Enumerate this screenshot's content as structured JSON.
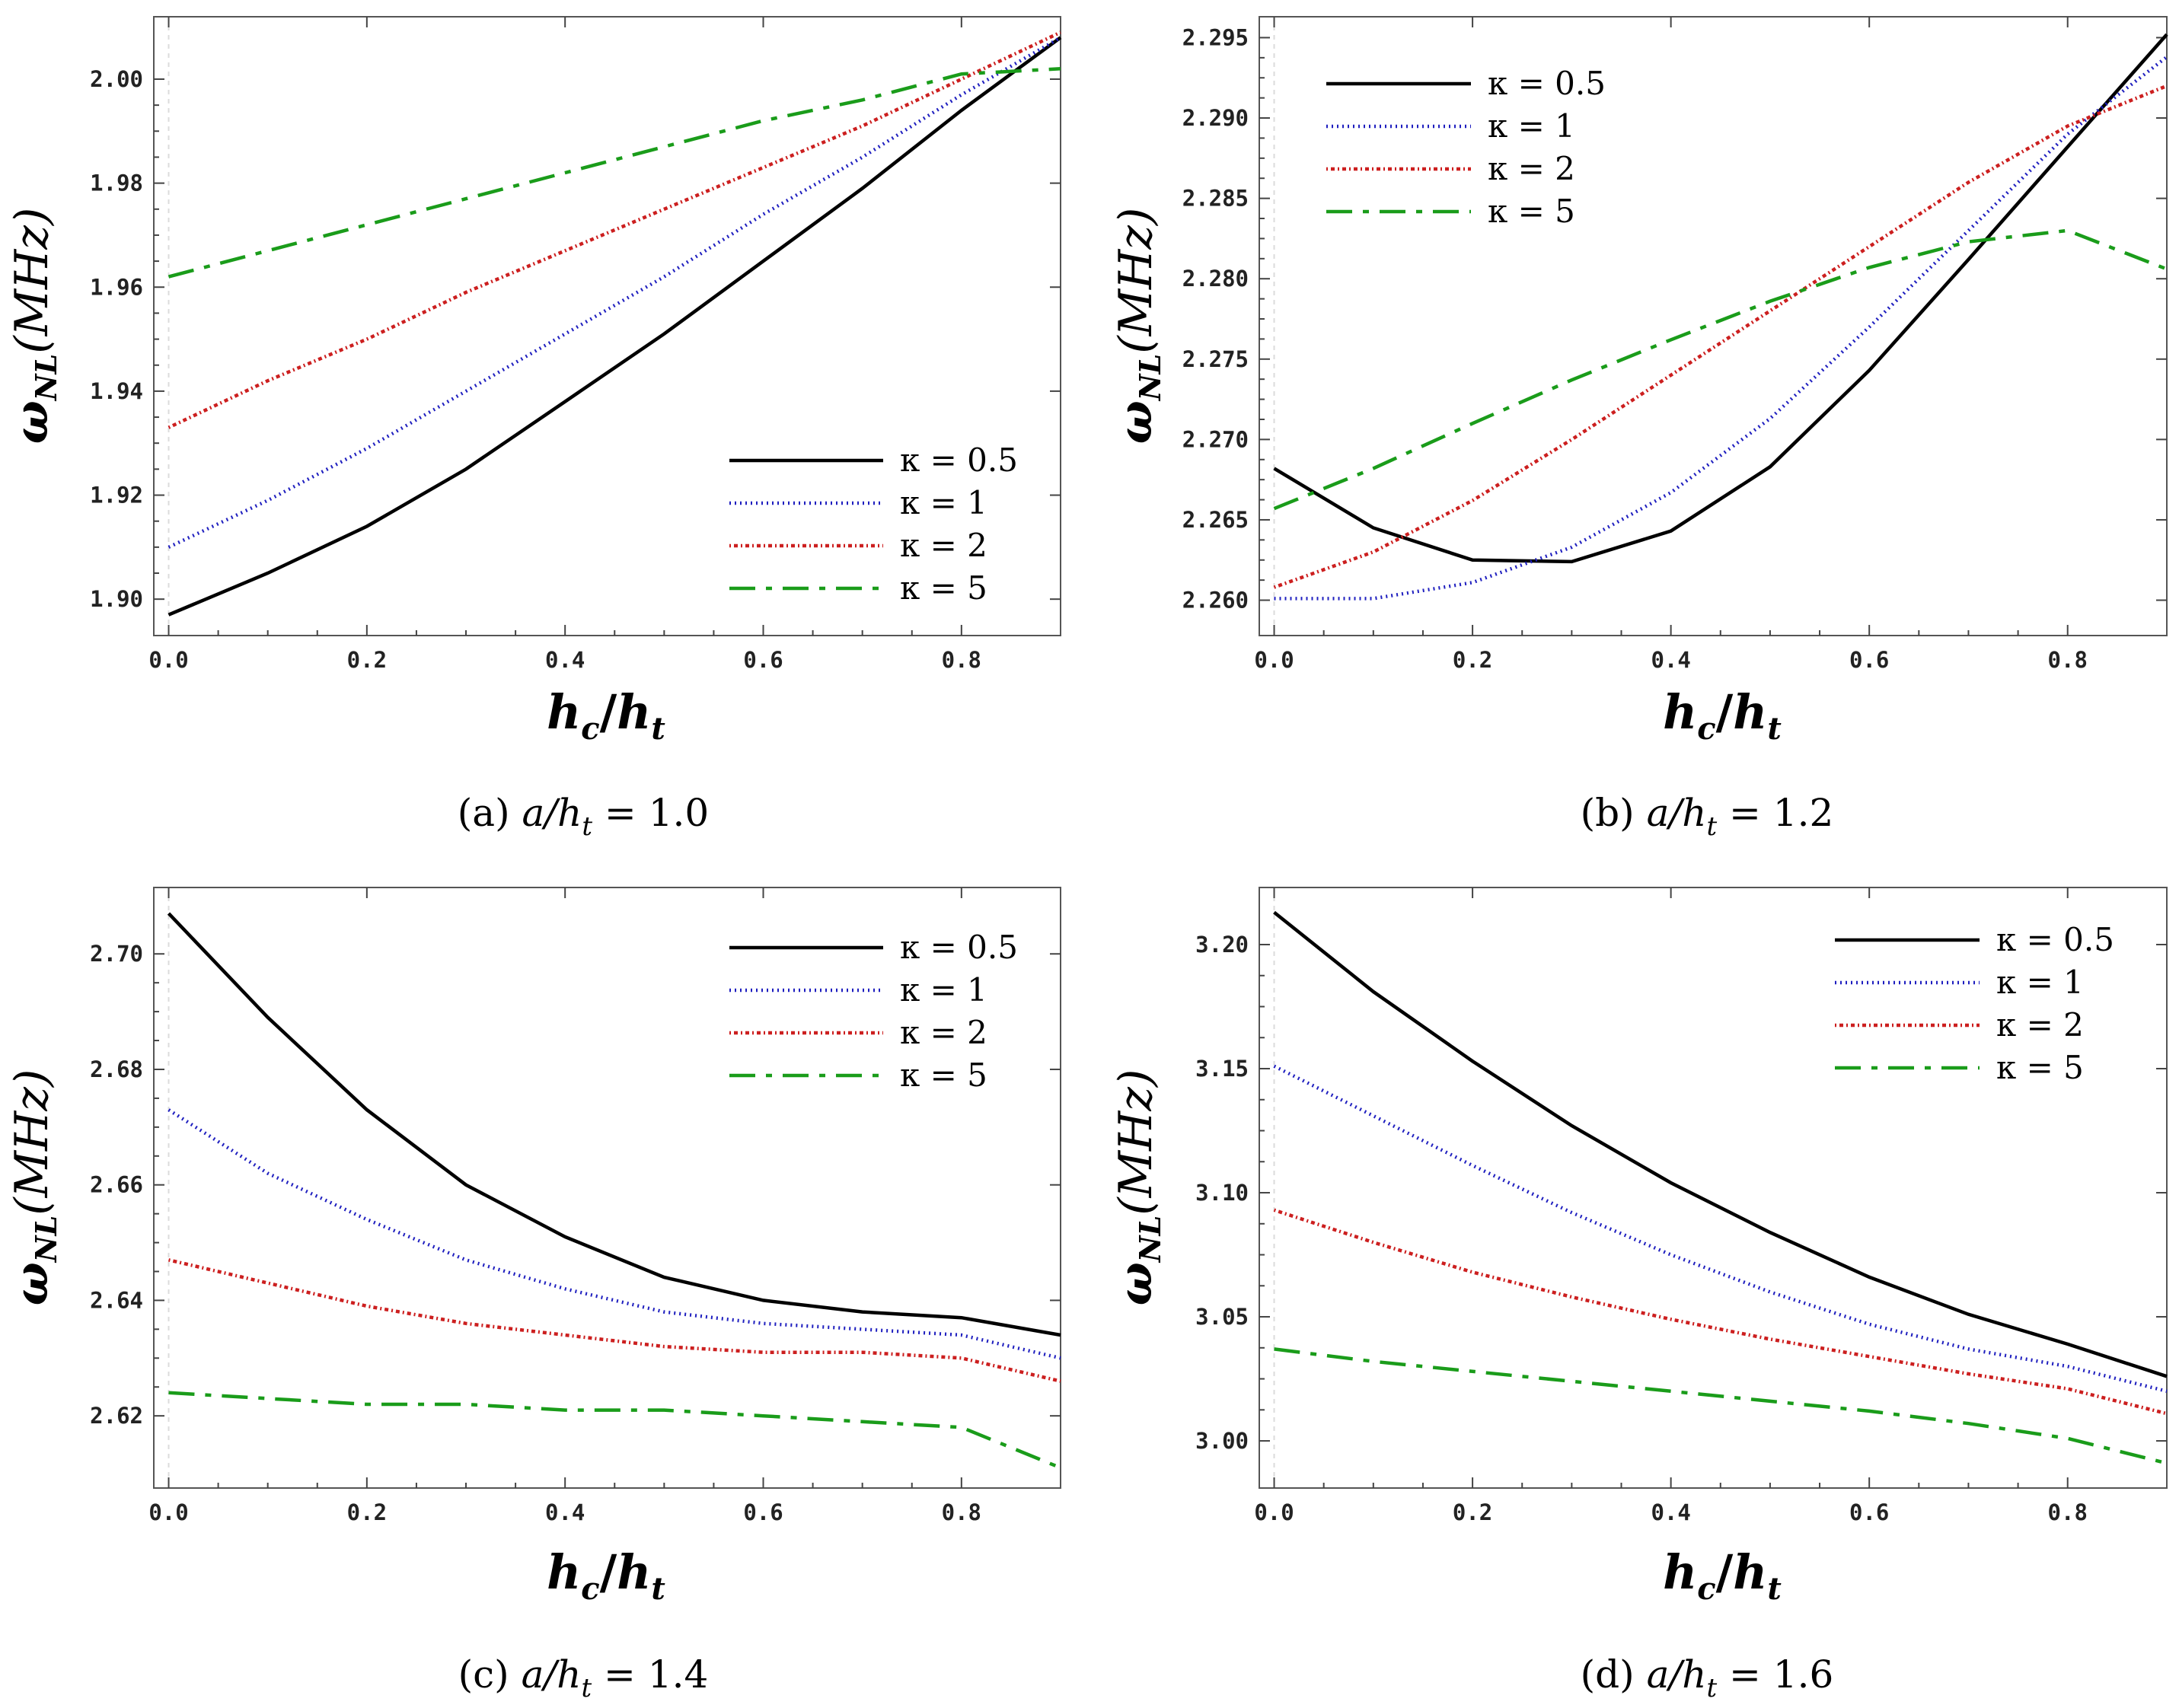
{
  "chart_data": [
    {
      "type": "line",
      "panel": "a",
      "caption_label": "(a)",
      "caption_eq": "a/h",
      "caption_sub": "t",
      "caption_value": "= 1.0",
      "xlabel": "h",
      "xlabel_sub1": "c",
      "xlabel_sub2": "t",
      "ylabel": "ω",
      "ylabel_sub": "NL",
      "ylabel_unit": "(MHz)",
      "xlim": [
        -0.015,
        0.9
      ],
      "ylim": [
        1.893,
        2.012
      ],
      "xticks": [
        "0.0",
        "0.2",
        "0.4",
        "0.6",
        "0.8"
      ],
      "yticks": [
        "1.90",
        "1.92",
        "1.94",
        "1.96",
        "1.98",
        "2.00"
      ],
      "legend_position": "bottom-right",
      "x": [
        0.0,
        0.1,
        0.2,
        0.3,
        0.4,
        0.5,
        0.6,
        0.7,
        0.8,
        0.9
      ],
      "series": [
        {
          "name": "κ = 0.5",
          "color": "#000000",
          "dash": "solid",
          "values": [
            1.897,
            1.905,
            1.914,
            1.925,
            1.938,
            1.951,
            1.965,
            1.979,
            1.994,
            2.008
          ]
        },
        {
          "name": "κ = 1",
          "color": "#1f1fbf",
          "dash": "dotted",
          "values": [
            1.91,
            1.919,
            1.929,
            1.94,
            1.951,
            1.962,
            1.974,
            1.985,
            1.997,
            2.008
          ]
        },
        {
          "name": "κ = 2",
          "color": "#cc1f1f",
          "dash": "dashdot",
          "values": [
            1.933,
            1.942,
            1.95,
            1.959,
            1.967,
            1.975,
            1.983,
            1.991,
            2.0,
            2.009
          ]
        },
        {
          "name": "κ = 5",
          "color": "#1a9c1a",
          "dash": "longdash",
          "values": [
            1.962,
            1.967,
            1.972,
            1.977,
            1.982,
            1.987,
            1.992,
            1.996,
            2.001,
            2.002
          ]
        }
      ]
    },
    {
      "type": "line",
      "panel": "b",
      "caption_label": "(b)",
      "caption_eq": "a/h",
      "caption_sub": "t",
      "caption_value": "= 1.2",
      "xlabel": "h",
      "xlabel_sub1": "c",
      "xlabel_sub2": "t",
      "ylabel": "ω",
      "ylabel_sub": "NL",
      "ylabel_unit": "(MHz)",
      "xlim": [
        -0.015,
        0.9
      ],
      "ylim": [
        2.2578,
        2.2963
      ],
      "xticks": [
        "0.0",
        "0.2",
        "0.4",
        "0.6",
        "0.8"
      ],
      "yticks": [
        "2.260",
        "2.265",
        "2.270",
        "2.275",
        "2.280",
        "2.285",
        "2.290",
        "2.295"
      ],
      "legend_position": "top-left",
      "x": [
        0.0,
        0.1,
        0.2,
        0.3,
        0.4,
        0.5,
        0.6,
        0.7,
        0.8,
        0.9
      ],
      "series": [
        {
          "name": "κ = 0.5",
          "color": "#000000",
          "dash": "solid",
          "values": [
            2.2682,
            2.2645,
            2.2625,
            2.2624,
            2.2643,
            2.2683,
            2.2743,
            2.2812,
            2.2882,
            2.2952
          ]
        },
        {
          "name": "κ = 1",
          "color": "#1f1fbf",
          "dash": "dotted",
          "values": [
            2.2601,
            2.2601,
            2.2611,
            2.2633,
            2.2667,
            2.2713,
            2.277,
            2.283,
            2.289,
            2.2938
          ]
        },
        {
          "name": "κ = 2",
          "color": "#cc1f1f",
          "dash": "dashdot",
          "values": [
            2.2608,
            2.263,
            2.2662,
            2.27,
            2.274,
            2.278,
            2.282,
            2.286,
            2.2895,
            2.292
          ]
        },
        {
          "name": "κ = 5",
          "color": "#1a9c1a",
          "dash": "longdash",
          "values": [
            2.2657,
            2.2682,
            2.271,
            2.2737,
            2.2762,
            2.2786,
            2.2807,
            2.2823,
            2.283,
            2.2806
          ]
        }
      ]
    },
    {
      "type": "line",
      "panel": "c",
      "caption_label": "(c)",
      "caption_eq": "a/h",
      "caption_sub": "t",
      "caption_value": "= 1.4",
      "xlabel": "h",
      "xlabel_sub1": "c",
      "xlabel_sub2": "t",
      "ylabel": "ω",
      "ylabel_sub": "NL",
      "ylabel_unit": "(MHz)",
      "xlim": [
        -0.015,
        0.9
      ],
      "ylim": [
        2.6075,
        2.7115
      ],
      "xticks": [
        "0.0",
        "0.2",
        "0.4",
        "0.6",
        "0.8"
      ],
      "yticks": [
        "2.62",
        "2.64",
        "2.66",
        "2.68",
        "2.70"
      ],
      "legend_position": "top-right",
      "x": [
        0.0,
        0.1,
        0.2,
        0.3,
        0.4,
        0.5,
        0.6,
        0.7,
        0.8,
        0.9
      ],
      "series": [
        {
          "name": "κ = 0.5",
          "color": "#000000",
          "dash": "solid",
          "values": [
            2.707,
            2.689,
            2.673,
            2.66,
            2.651,
            2.644,
            2.64,
            2.638,
            2.637,
            2.634
          ]
        },
        {
          "name": "κ = 1",
          "color": "#1f1fbf",
          "dash": "dotted",
          "values": [
            2.673,
            2.662,
            2.654,
            2.647,
            2.642,
            2.638,
            2.636,
            2.635,
            2.634,
            2.63
          ]
        },
        {
          "name": "κ = 2",
          "color": "#cc1f1f",
          "dash": "dashdot",
          "values": [
            2.647,
            2.643,
            2.639,
            2.636,
            2.634,
            2.632,
            2.631,
            2.631,
            2.63,
            2.626
          ]
        },
        {
          "name": "κ = 5",
          "color": "#1a9c1a",
          "dash": "longdash",
          "values": [
            2.624,
            2.623,
            2.622,
            2.622,
            2.621,
            2.621,
            2.62,
            2.619,
            2.618,
            2.611
          ]
        }
      ]
    },
    {
      "type": "line",
      "panel": "d",
      "caption_label": "(d)",
      "caption_eq": "a/h",
      "caption_sub": "t",
      "caption_value": "= 1.6",
      "xlabel": "h",
      "xlabel_sub1": "c",
      "xlabel_sub2": "t",
      "ylabel": "ω",
      "ylabel_sub": "NL",
      "ylabel_unit": "(MHz)",
      "xlim": [
        -0.015,
        0.9
      ],
      "ylim": [
        2.981,
        3.223
      ],
      "xticks": [
        "0.0",
        "0.2",
        "0.4",
        "0.6",
        "0.8"
      ],
      "yticks": [
        "3.00",
        "3.05",
        "3.10",
        "3.15",
        "3.20"
      ],
      "legend_position": "top-right",
      "x": [
        0.0,
        0.1,
        0.2,
        0.3,
        0.4,
        0.5,
        0.6,
        0.7,
        0.8,
        0.9
      ],
      "series": [
        {
          "name": "κ = 0.5",
          "color": "#000000",
          "dash": "solid",
          "values": [
            3.213,
            3.181,
            3.153,
            3.127,
            3.104,
            3.084,
            3.066,
            3.051,
            3.039,
            3.026
          ]
        },
        {
          "name": "κ = 1",
          "color": "#1f1fbf",
          "dash": "dotted",
          "values": [
            3.151,
            3.131,
            3.111,
            3.092,
            3.075,
            3.06,
            3.047,
            3.037,
            3.03,
            3.02
          ]
        },
        {
          "name": "κ = 2",
          "color": "#cc1f1f",
          "dash": "dashdot",
          "values": [
            3.093,
            3.08,
            3.068,
            3.058,
            3.049,
            3.041,
            3.034,
            3.027,
            3.021,
            3.011
          ]
        },
        {
          "name": "κ = 5",
          "color": "#1a9c1a",
          "dash": "longdash",
          "values": [
            3.037,
            3.032,
            3.028,
            3.024,
            3.02,
            3.016,
            3.012,
            3.007,
            3.001,
            2.991
          ]
        }
      ]
    }
  ]
}
